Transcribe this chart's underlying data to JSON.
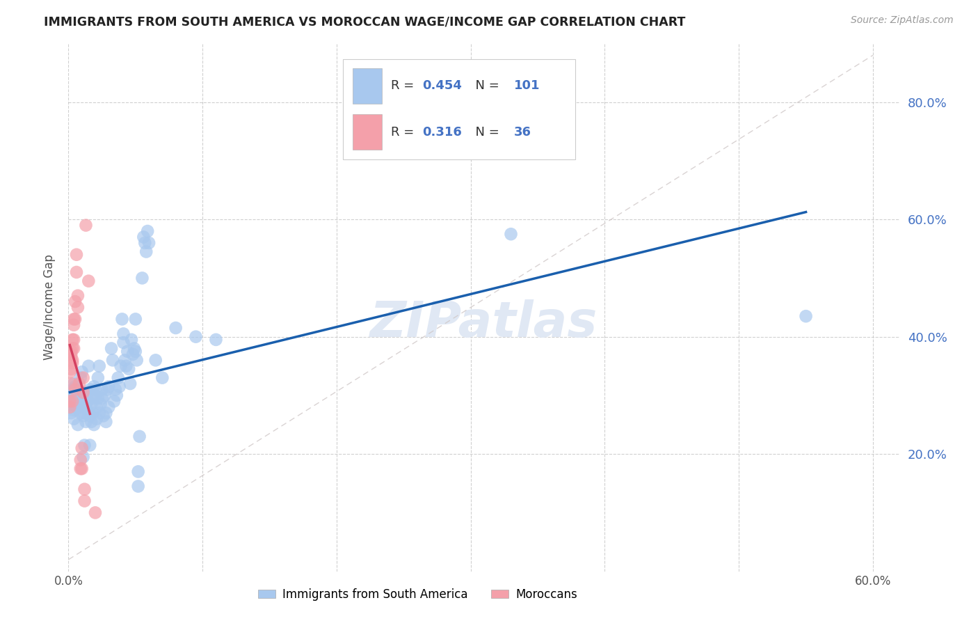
{
  "title": "IMMIGRANTS FROM SOUTH AMERICA VS MOROCCAN WAGE/INCOME GAP CORRELATION CHART",
  "source": "Source: ZipAtlas.com",
  "ylabel": "Wage/Income Gap",
  "blue_label": "Immigrants from South America",
  "pink_label": "Moroccans",
  "blue_color": "#A8C8EE",
  "pink_color": "#F4A0AA",
  "trend_blue": "#1A5FAD",
  "trend_pink": "#D44060",
  "trend_diag_color": "#D0C8C8",
  "legend_blue_r": "0.454",
  "legend_blue_n": "101",
  "legend_pink_r": "0.316",
  "legend_pink_n": "36",
  "legend_r_color": "#4472C4",
  "legend_n_color": "#4472C4",
  "right_tick_color": "#4472C4",
  "bg_color": "#FFFFFF",
  "watermark": "ZIPatlas",
  "watermark_color": "#E0E8F4",
  "blue_scatter": [
    [
      0.001,
      0.29
    ],
    [
      0.002,
      0.305
    ],
    [
      0.002,
      0.27
    ],
    [
      0.003,
      0.3
    ],
    [
      0.003,
      0.285
    ],
    [
      0.003,
      0.31
    ],
    [
      0.004,
      0.32
    ],
    [
      0.004,
      0.275
    ],
    [
      0.004,
      0.26
    ],
    [
      0.005,
      0.315
    ],
    [
      0.005,
      0.295
    ],
    [
      0.005,
      0.31
    ],
    [
      0.006,
      0.29
    ],
    [
      0.006,
      0.28
    ],
    [
      0.006,
      0.3
    ],
    [
      0.007,
      0.25
    ],
    [
      0.007,
      0.31
    ],
    [
      0.008,
      0.305
    ],
    [
      0.008,
      0.28
    ],
    [
      0.009,
      0.27
    ],
    [
      0.009,
      0.3
    ],
    [
      0.009,
      0.33
    ],
    [
      0.01,
      0.295
    ],
    [
      0.01,
      0.34
    ],
    [
      0.01,
      0.285
    ],
    [
      0.011,
      0.195
    ],
    [
      0.011,
      0.265
    ],
    [
      0.012,
      0.27
    ],
    [
      0.012,
      0.215
    ],
    [
      0.012,
      0.3
    ],
    [
      0.013,
      0.255
    ],
    [
      0.013,
      0.285
    ],
    [
      0.014,
      0.29
    ],
    [
      0.014,
      0.305
    ],
    [
      0.015,
      0.35
    ],
    [
      0.015,
      0.27
    ],
    [
      0.016,
      0.265
    ],
    [
      0.016,
      0.31
    ],
    [
      0.016,
      0.215
    ],
    [
      0.017,
      0.285
    ],
    [
      0.017,
      0.255
    ],
    [
      0.018,
      0.27
    ],
    [
      0.018,
      0.295
    ],
    [
      0.019,
      0.315
    ],
    [
      0.019,
      0.25
    ],
    [
      0.02,
      0.3
    ],
    [
      0.02,
      0.31
    ],
    [
      0.021,
      0.28
    ],
    [
      0.021,
      0.26
    ],
    [
      0.022,
      0.33
    ],
    [
      0.022,
      0.295
    ],
    [
      0.023,
      0.35
    ],
    [
      0.023,
      0.27
    ],
    [
      0.024,
      0.285
    ],
    [
      0.025,
      0.31
    ],
    [
      0.025,
      0.295
    ],
    [
      0.026,
      0.265
    ],
    [
      0.027,
      0.3
    ],
    [
      0.028,
      0.27
    ],
    [
      0.028,
      0.255
    ],
    [
      0.029,
      0.31
    ],
    [
      0.03,
      0.315
    ],
    [
      0.03,
      0.28
    ],
    [
      0.032,
      0.38
    ],
    [
      0.033,
      0.36
    ],
    [
      0.034,
      0.29
    ],
    [
      0.035,
      0.31
    ],
    [
      0.036,
      0.3
    ],
    [
      0.037,
      0.33
    ],
    [
      0.038,
      0.315
    ],
    [
      0.039,
      0.35
    ],
    [
      0.04,
      0.43
    ],
    [
      0.041,
      0.405
    ],
    [
      0.041,
      0.39
    ],
    [
      0.042,
      0.36
    ],
    [
      0.043,
      0.35
    ],
    [
      0.044,
      0.375
    ],
    [
      0.045,
      0.345
    ],
    [
      0.046,
      0.32
    ],
    [
      0.047,
      0.395
    ],
    [
      0.048,
      0.37
    ],
    [
      0.049,
      0.38
    ],
    [
      0.05,
      0.43
    ],
    [
      0.05,
      0.375
    ],
    [
      0.051,
      0.36
    ],
    [
      0.052,
      0.145
    ],
    [
      0.052,
      0.17
    ],
    [
      0.053,
      0.23
    ],
    [
      0.055,
      0.5
    ],
    [
      0.056,
      0.57
    ],
    [
      0.057,
      0.56
    ],
    [
      0.058,
      0.545
    ],
    [
      0.059,
      0.58
    ],
    [
      0.06,
      0.56
    ],
    [
      0.065,
      0.36
    ],
    [
      0.07,
      0.33
    ],
    [
      0.08,
      0.415
    ],
    [
      0.095,
      0.4
    ],
    [
      0.11,
      0.395
    ],
    [
      0.33,
      0.575
    ],
    [
      0.55,
      0.435
    ]
  ],
  "pink_scatter": [
    [
      0.001,
      0.28
    ],
    [
      0.001,
      0.29
    ],
    [
      0.001,
      0.34
    ],
    [
      0.002,
      0.37
    ],
    [
      0.002,
      0.345
    ],
    [
      0.002,
      0.365
    ],
    [
      0.002,
      0.32
    ],
    [
      0.002,
      0.375
    ],
    [
      0.003,
      0.36
    ],
    [
      0.003,
      0.355
    ],
    [
      0.003,
      0.38
    ],
    [
      0.003,
      0.395
    ],
    [
      0.003,
      0.29
    ],
    [
      0.004,
      0.395
    ],
    [
      0.004,
      0.38
    ],
    [
      0.004,
      0.42
    ],
    [
      0.004,
      0.43
    ],
    [
      0.005,
      0.43
    ],
    [
      0.005,
      0.46
    ],
    [
      0.005,
      0.31
    ],
    [
      0.006,
      0.51
    ],
    [
      0.006,
      0.54
    ],
    [
      0.007,
      0.45
    ],
    [
      0.007,
      0.47
    ],
    [
      0.008,
      0.32
    ],
    [
      0.009,
      0.175
    ],
    [
      0.009,
      0.19
    ],
    [
      0.01,
      0.21
    ],
    [
      0.01,
      0.175
    ],
    [
      0.011,
      0.33
    ],
    [
      0.011,
      0.305
    ],
    [
      0.012,
      0.14
    ],
    [
      0.012,
      0.12
    ],
    [
      0.013,
      0.59
    ],
    [
      0.015,
      0.495
    ],
    [
      0.02,
      0.1
    ]
  ],
  "xlim": [
    0.0,
    0.62
  ],
  "ylim": [
    0.0,
    0.9
  ],
  "xticks": [
    0.0,
    0.1,
    0.2,
    0.3,
    0.4,
    0.5,
    0.6
  ],
  "yticks": [
    0.2,
    0.4,
    0.6,
    0.8
  ],
  "figsize": [
    14.06,
    8.92
  ],
  "dpi": 100
}
